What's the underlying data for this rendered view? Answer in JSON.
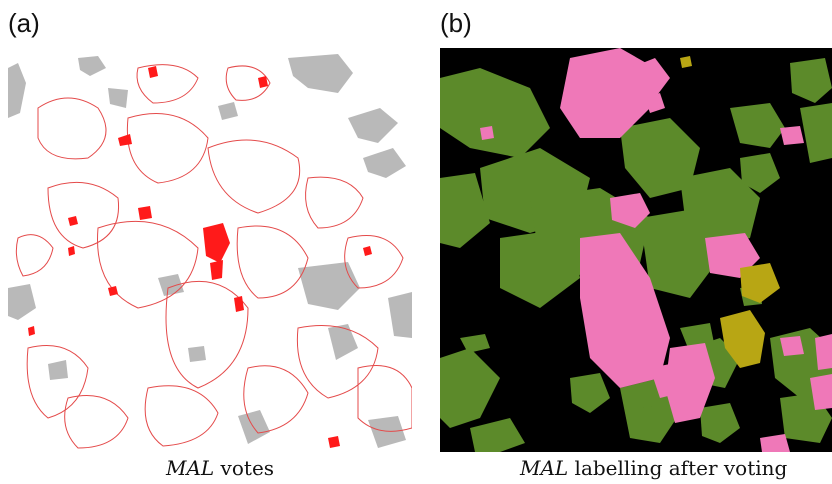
{
  "panels": [
    {
      "label": "(a)",
      "caption_em": "MAL",
      "caption_rest": " votes"
    },
    {
      "label": "(b)",
      "caption_em": "MAL",
      "caption_rest": " labelling after voting"
    }
  ],
  "colors": {
    "votes_gray": "#b9b9b9",
    "votes_red": "#ff1a1a",
    "votes_outline": "#e44a4a",
    "bg_black": "#000000",
    "green": "#5c8a2a",
    "pink": "#ef78b8",
    "olive": "#b8a614"
  }
}
